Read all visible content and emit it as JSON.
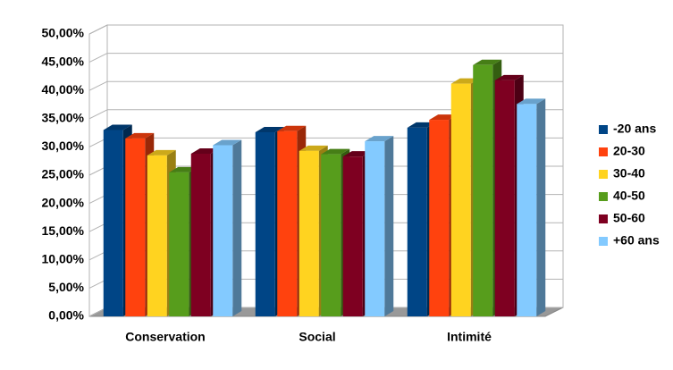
{
  "chart_data": {
    "type": "bar3d",
    "categories": [
      "Conservation",
      "Social",
      "Intimité"
    ],
    "series": [
      {
        "name": "-20 ans",
        "color": "#004586",
        "values": [
          33,
          32.6,
          33.4
        ]
      },
      {
        "name": "20-30",
        "color": "#ff420e",
        "values": [
          31.5,
          32.8,
          34.8
        ]
      },
      {
        "name": "30-40",
        "color": "#ffd320",
        "values": [
          28.5,
          29.3,
          41.2
        ]
      },
      {
        "name": "40-50",
        "color": "#579d1c",
        "values": [
          25.5,
          28.7,
          44.5
        ]
      },
      {
        "name": "50-60",
        "color": "#7e0021",
        "values": [
          28.8,
          28.3,
          41.8
        ]
      },
      {
        "name": "+60 ans",
        "color": "#83caff",
        "values": [
          30.3,
          31,
          37.6
        ]
      }
    ],
    "ylim": [
      0,
      50
    ],
    "yticks": [
      {
        "value": 0,
        "label": "0,00%"
      },
      {
        "value": 5,
        "label": "5,00%"
      },
      {
        "value": 10,
        "label": "10,00%"
      },
      {
        "value": 15,
        "label": "15,00%"
      },
      {
        "value": 20,
        "label": "20,00%"
      },
      {
        "value": 25,
        "label": "25,00%"
      },
      {
        "value": 30,
        "label": "30,00%"
      },
      {
        "value": 35,
        "label": "35,00%"
      },
      {
        "value": 40,
        "label": "40,00%"
      },
      {
        "value": 45,
        "label": "45,00%"
      },
      {
        "value": 50,
        "label": "50,00%"
      }
    ],
    "grid": true,
    "legend": "right"
  }
}
